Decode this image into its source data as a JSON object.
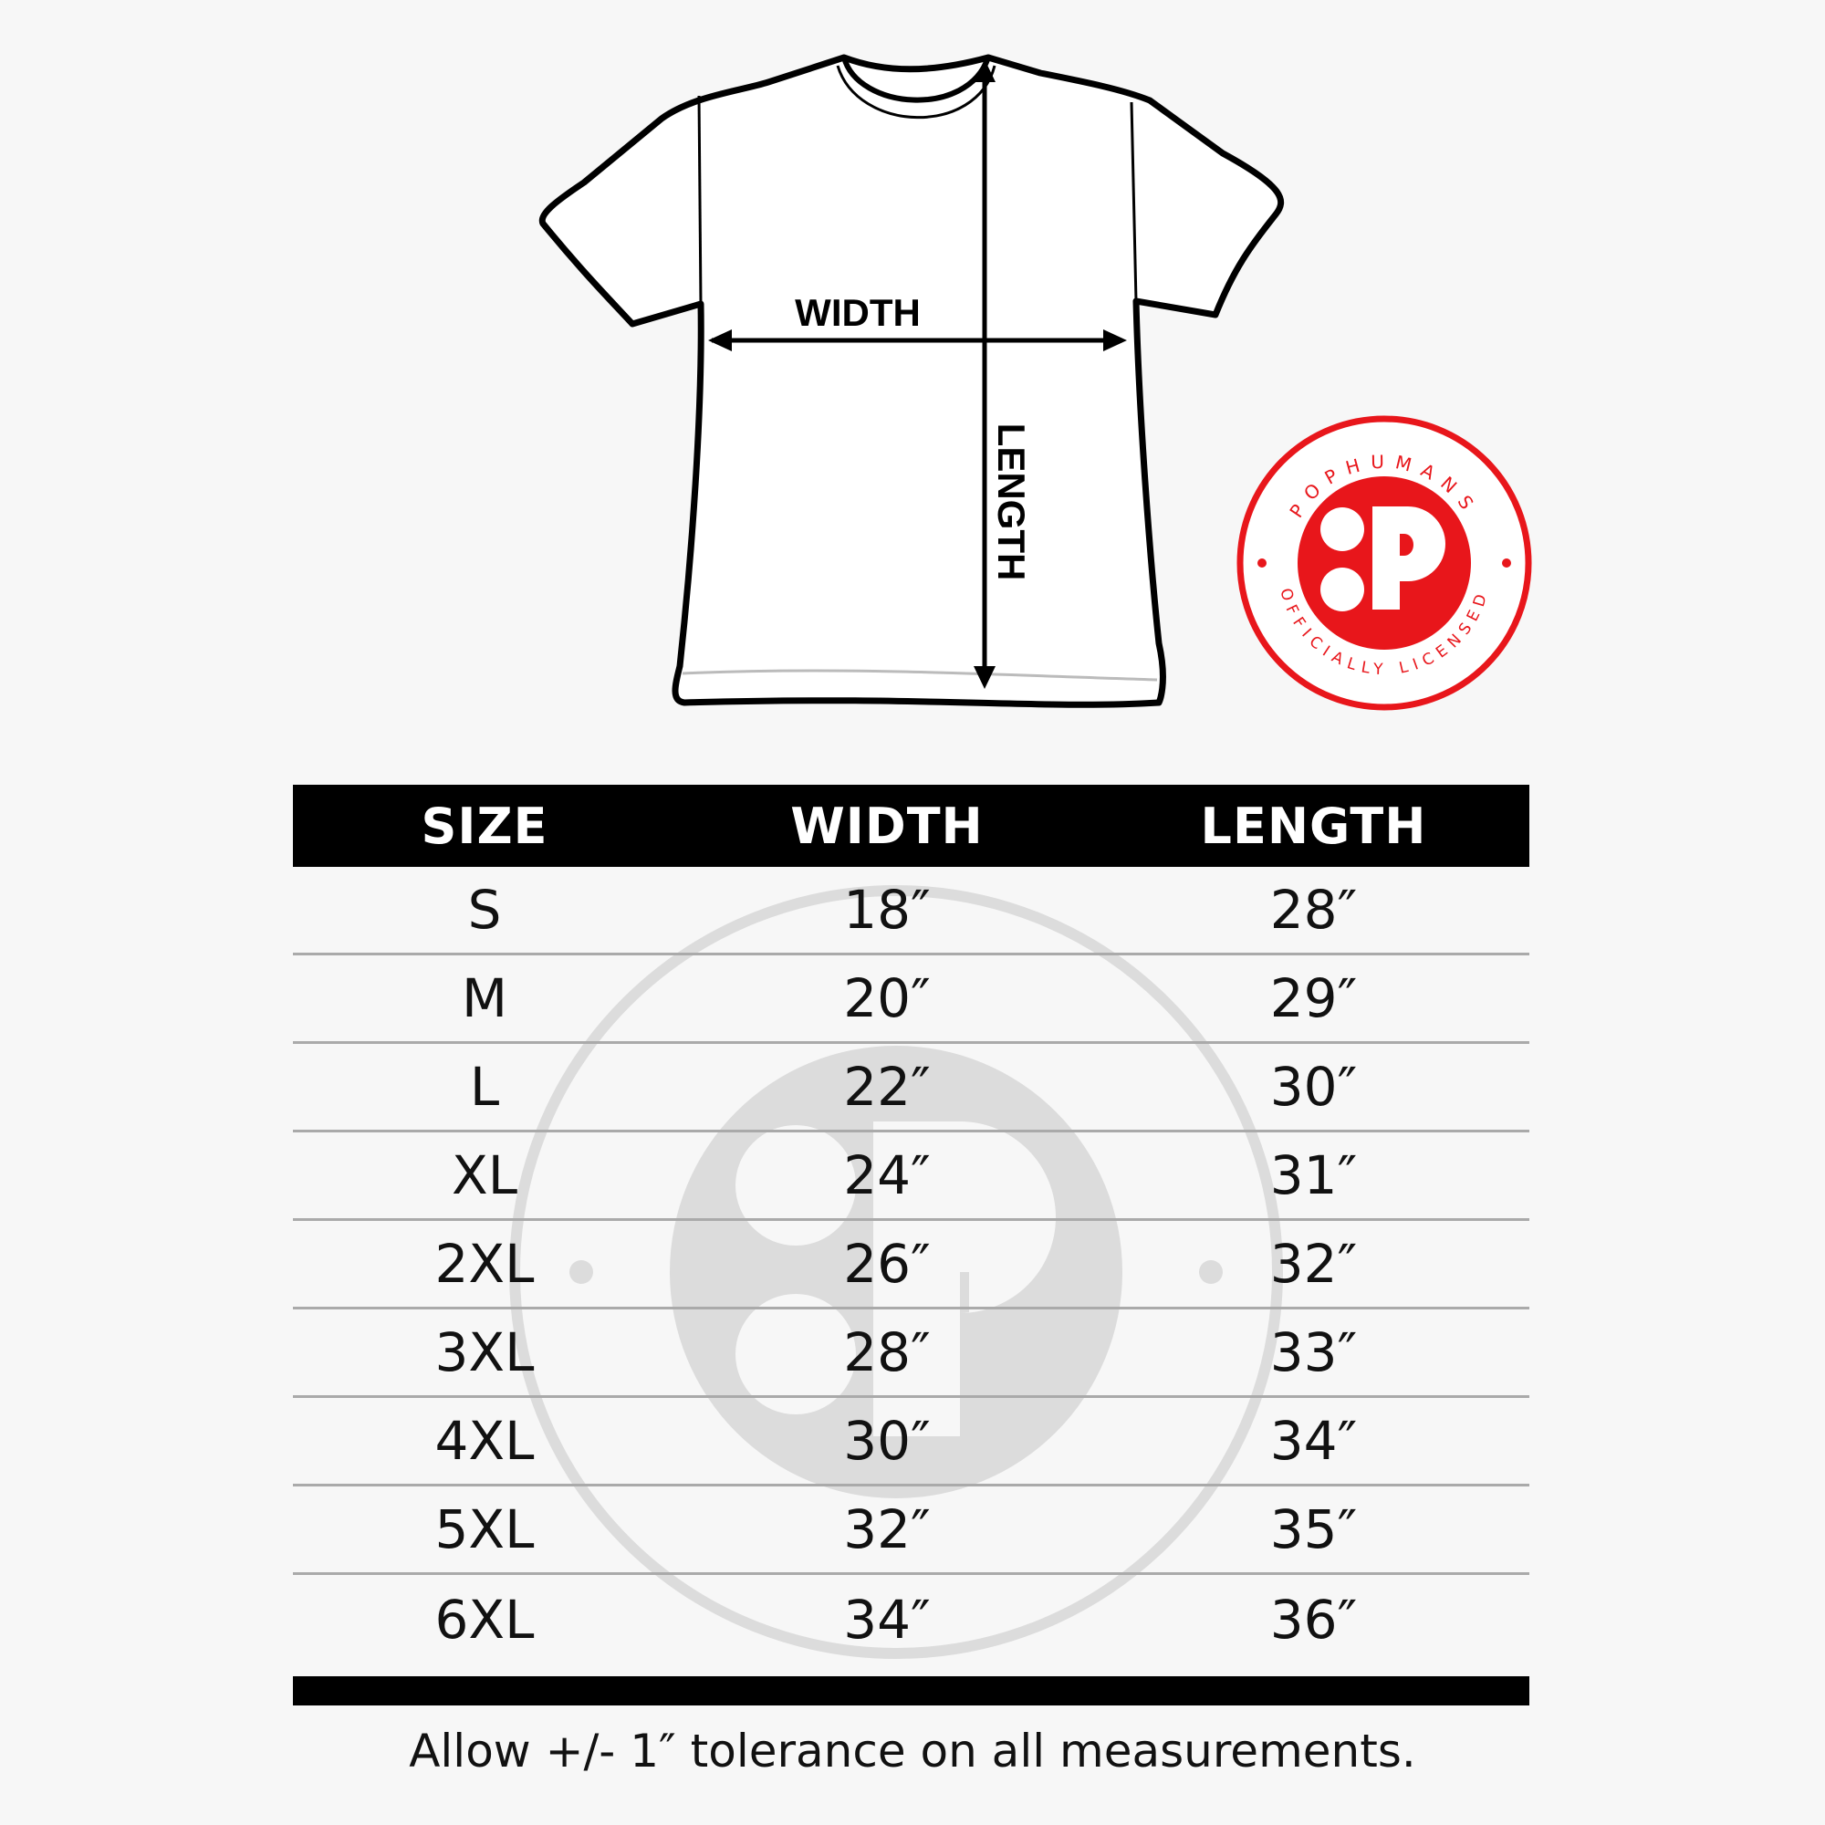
{
  "diagram": {
    "width_label": "WIDTH",
    "length_label": "LENGTH"
  },
  "badge": {
    "top_text": "POPHUMANS",
    "bottom_text": "OFFICIALLY LICENSED",
    "color": "#e8161b"
  },
  "table": {
    "headers": [
      "SIZE",
      "WIDTH",
      "LENGTH"
    ],
    "rows": [
      {
        "size": "S",
        "width": "18″",
        "length": "28″"
      },
      {
        "size": "M",
        "width": "20″",
        "length": "29″"
      },
      {
        "size": "L",
        "width": "22″",
        "length": "30″"
      },
      {
        "size": "XL",
        "width": "24″",
        "length": "31″"
      },
      {
        "size": "2XL",
        "width": "26″",
        "length": "32″"
      },
      {
        "size": "3XL",
        "width": "28″",
        "length": "33″"
      },
      {
        "size": "4XL",
        "width": "30″",
        "length": "34″"
      },
      {
        "size": "5XL",
        "width": "32″",
        "length": "35″"
      },
      {
        "size": "6XL",
        "width": "34″",
        "length": "36″"
      }
    ]
  },
  "footer": {
    "note": "Allow +/- 1″ tolerance on all measurements."
  }
}
